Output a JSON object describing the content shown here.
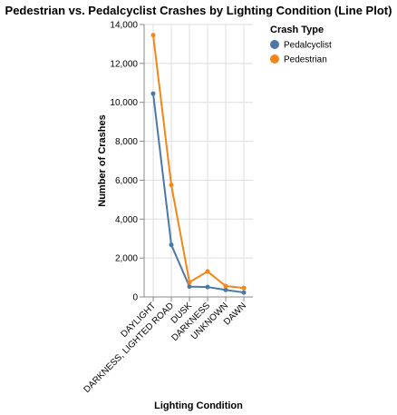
{
  "chart_data": {
    "type": "line",
    "title": "Pedestrian vs. Pedalcyclist Crashes by Lighting Condition (Line Plot)",
    "xlabel": "Lighting Condition",
    "ylabel": "Number of Crashes",
    "categories": [
      "DAYLIGHT",
      "DARKNESS, LIGHTED ROAD",
      "DUSK",
      "DARKNESS",
      "UNKNOWN",
      "DAWN"
    ],
    "ylim": [
      0,
      14000
    ],
    "yticks": [
      0,
      2000,
      4000,
      6000,
      8000,
      10000,
      12000,
      14000
    ],
    "ytick_labels": [
      "0",
      "2,000",
      "4,000",
      "6,000",
      "8,000",
      "10,000",
      "12,000",
      "14,000"
    ],
    "grid": true,
    "legend": {
      "title": "Crash Type",
      "position": "top-right"
    },
    "series": [
      {
        "name": "Pedalcyclist",
        "color": "#4c78a8",
        "values": [
          10450,
          2680,
          530,
          510,
          360,
          230
        ]
      },
      {
        "name": "Pedestrian",
        "color": "#f58518",
        "values": [
          13450,
          5750,
          760,
          1310,
          560,
          460
        ]
      }
    ]
  }
}
